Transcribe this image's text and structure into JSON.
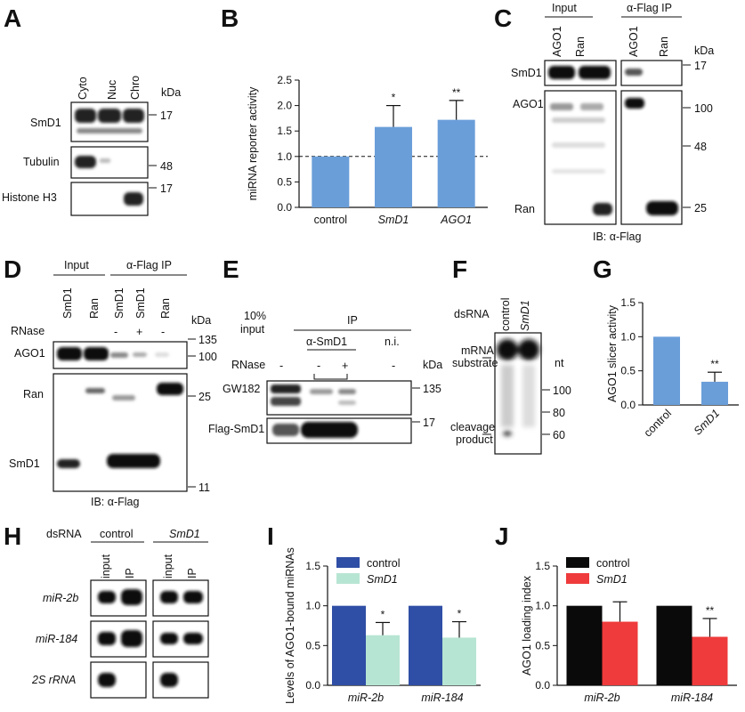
{
  "colors": {
    "blue": "#6a9ed9",
    "navy": "#2f4ea5",
    "mint": "#b7e5d3",
    "red": "#ef3b3b",
    "black": "#0a0a0a",
    "blot": "#1a1a1a"
  },
  "panels": {
    "A": {
      "letter": "A",
      "lanes": [
        "Cyto",
        "Nuc",
        "Chro"
      ],
      "kda": "kDa",
      "rows": [
        "SmD1",
        "Tubulin",
        "Histone H3"
      ],
      "markers": [
        "17",
        "48",
        "17"
      ]
    },
    "B": {
      "letter": "B"
    },
    "C": {
      "letter": "C",
      "group_input": "Input",
      "group_ip": "α-Flag IP",
      "lanes": [
        "AGO1",
        "Ran",
        "AGO1",
        "Ran"
      ],
      "kda": "kDa",
      "rows": [
        "SmD1",
        "AGO1",
        "Ran"
      ],
      "markers": [
        "17",
        "100",
        "48",
        "25"
      ],
      "ib": "IB: α-Flag"
    },
    "D": {
      "letter": "D",
      "group_input": "Input",
      "group_ip": "α-Flag IP",
      "lanes": [
        "SmD1",
        "Ran",
        "SmD1",
        "SmD1",
        "Ran"
      ],
      "rnase_label": "RNase",
      "rnase": [
        "-",
        "+",
        "-"
      ],
      "kda": "kDa",
      "rows": [
        "AGO1",
        "Ran",
        "SmD1"
      ],
      "markers": [
        "135",
        "100",
        "25",
        "11"
      ],
      "ib": "IB: α-Flag"
    },
    "E": {
      "letter": "E",
      "input_label_1": "10%",
      "input_label_2": "input",
      "ip": "IP",
      "asmd1": "α-SmD1",
      "ni": "n.i.",
      "rnase_label": "RNase",
      "rnase": [
        "-",
        "-",
        "+",
        "-"
      ],
      "kda": "kDa",
      "rows": [
        "GW182",
        "Flag-SmD1"
      ],
      "markers": [
        "135",
        "17"
      ]
    },
    "F": {
      "letter": "F",
      "dsrna": "dsRNA",
      "lanes": [
        "control",
        "SmD1"
      ],
      "nt": "nt",
      "substrate_1": "mRNA",
      "substrate_2": "substrate",
      "product_1": "cleavage",
      "product_2": "product",
      "markers": [
        "100",
        "80",
        "60"
      ]
    },
    "G": {
      "letter": "G"
    },
    "H": {
      "letter": "H",
      "dsrna": "dsRNA",
      "groups": [
        "control",
        "SmD1"
      ],
      "lanes": [
        "input",
        "IP",
        "input",
        "IP"
      ],
      "rows": [
        "miR-2b",
        "miR-184",
        "2S rRNA"
      ]
    },
    "I": {
      "letter": "I"
    },
    "J": {
      "letter": "J"
    }
  },
  "chart_data": [
    {
      "panel": "B",
      "type": "bar",
      "categories": [
        "control",
        "SmD1",
        "AGO1"
      ],
      "values": [
        1.0,
        1.58,
        1.72
      ],
      "errors": [
        0,
        0.42,
        0.38
      ],
      "significance": [
        "",
        "*",
        "**"
      ],
      "ylabel": "miRNA reporter activity",
      "ylim": [
        0,
        2.5
      ],
      "yticks": [
        "0.0",
        "0.5",
        "1.0",
        "1.5",
        "2.0",
        "2.5"
      ],
      "reference_line": 1.0
    },
    {
      "panel": "G",
      "type": "bar",
      "categories": [
        "control",
        "SmD1"
      ],
      "values": [
        1.0,
        0.34
      ],
      "errors": [
        0,
        0.14
      ],
      "significance": [
        "",
        "**"
      ],
      "ylabel": "AGO1 slicer activity",
      "ylim": [
        0,
        1.5
      ],
      "yticks": [
        "0.0",
        "0.5",
        "1.0",
        "1.5"
      ]
    },
    {
      "panel": "I",
      "type": "bar",
      "categories": [
        "miR-2b",
        "miR-184"
      ],
      "series": [
        {
          "name": "control",
          "values": [
            1.0,
            1.0
          ],
          "errors": [
            0,
            0
          ]
        },
        {
          "name": "SmD1",
          "values": [
            0.63,
            0.6
          ],
          "errors": [
            0.16,
            0.2
          ]
        }
      ],
      "significance": [
        "*",
        "*"
      ],
      "ylabel": "Levels of AGO1-bound miRNAs",
      "ylim": [
        0,
        1.5
      ],
      "yticks": [
        "0.0",
        "0.5",
        "1.0",
        "1.5"
      ],
      "legend": "top-left"
    },
    {
      "panel": "J",
      "type": "bar",
      "categories": [
        "miR-2b",
        "miR-184"
      ],
      "series": [
        {
          "name": "control",
          "values": [
            1.0,
            1.0
          ],
          "errors": [
            0,
            0
          ]
        },
        {
          "name": "SmD1",
          "values": [
            0.8,
            0.61
          ],
          "errors": [
            0.25,
            0.23
          ]
        }
      ],
      "significance": [
        "",
        "**"
      ],
      "ylabel": "AGO1 loading index",
      "ylim": [
        0,
        1.5
      ],
      "yticks": [
        "0.0",
        "0.5",
        "1.0",
        "1.5"
      ],
      "legend": "top-left"
    }
  ]
}
